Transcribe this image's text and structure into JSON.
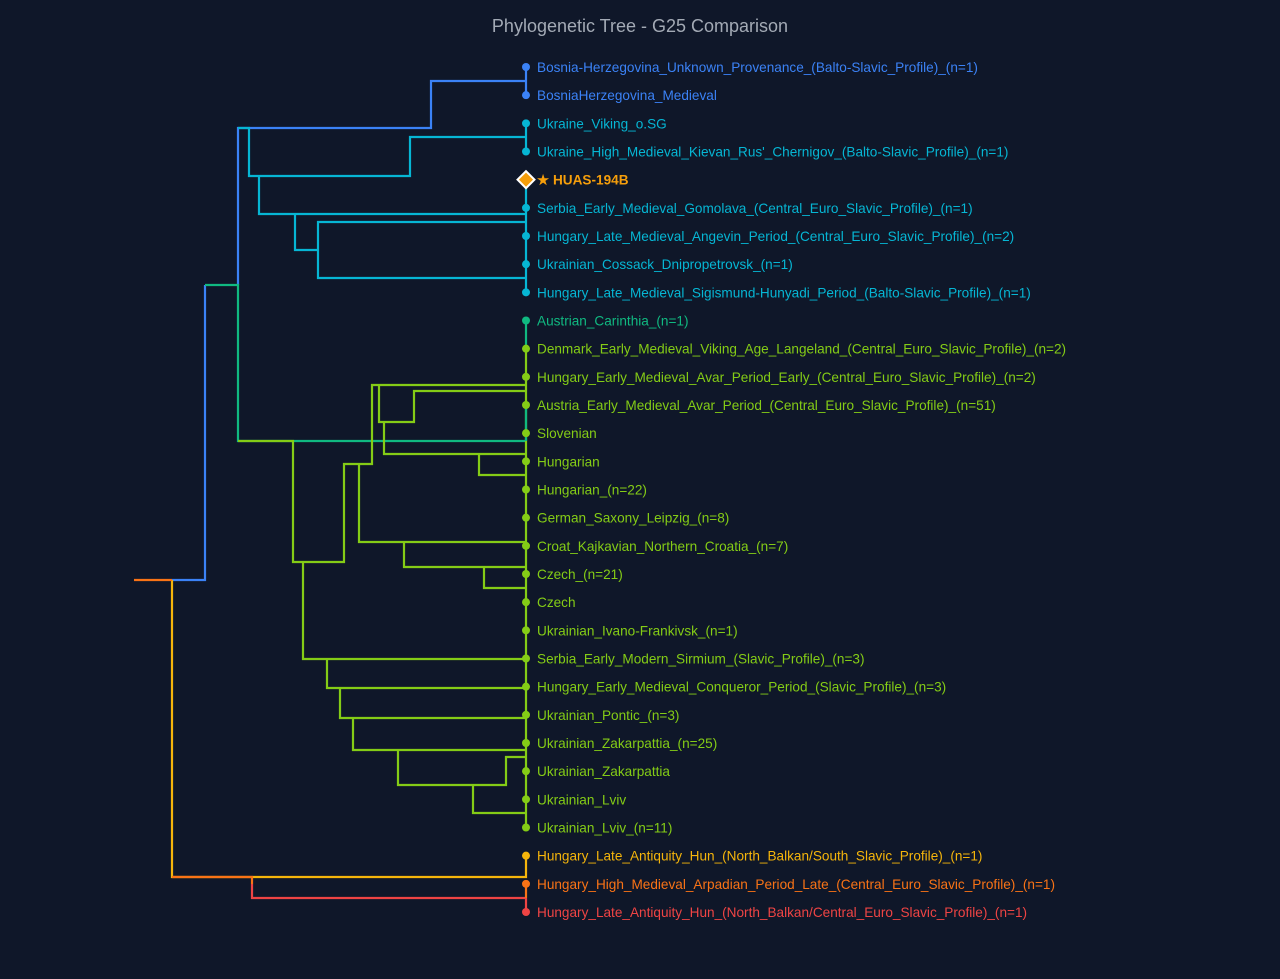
{
  "chart_data": {
    "type": "dendrogram",
    "title": "Phylogenetic Tree - G25 Comparison",
    "orientation": "leaves-right",
    "highlight": {
      "label": "HUAS-194B",
      "marker": "diamond",
      "prefix": "★",
      "color": "#f59e0b"
    },
    "cluster_colors": {
      "blue": "#3b82f6",
      "cyan": "#06b6d4",
      "teal": "#10b981",
      "lime": "#84cc16",
      "yellow": "#f5b50b",
      "orange": "#f97316",
      "red": "#ef4444"
    },
    "leaves": [
      {
        "label": "Bosnia-Herzegovina_Unknown_Provenance_(Balto-Slavic_Profile)_(n=1)",
        "color": "#3b82f6"
      },
      {
        "label": "BosniaHerzegovina_Medieval",
        "color": "#3b82f6"
      },
      {
        "label": "Ukraine_Viking_o.SG",
        "color": "#06b6d4"
      },
      {
        "label": "Ukraine_High_Medieval_Kievan_Rus'_Chernigov_(Balto-Slavic_Profile)_(n=1)",
        "color": "#06b6d4"
      },
      {
        "label": "★ HUAS-194B",
        "color": "#f59e0b",
        "highlight": true
      },
      {
        "label": "Serbia_Early_Medieval_Gomolava_(Central_Euro_Slavic_Profile)_(n=1)",
        "color": "#06b6d4"
      },
      {
        "label": "Hungary_Late_Medieval_Angevin_Period_(Central_Euro_Slavic_Profile)_(n=2)",
        "color": "#06b6d4"
      },
      {
        "label": "Ukrainian_Cossack_Dnipropetrovsk_(n=1)",
        "color": "#06b6d4"
      },
      {
        "label": "Hungary_Late_Medieval_Sigismund-Hunyadi_Period_(Balto-Slavic_Profile)_(n=1)",
        "color": "#06b6d4"
      },
      {
        "label": "Austrian_Carinthia_(n=1)",
        "color": "#10b981"
      },
      {
        "label": "Denmark_Early_Medieval_Viking_Age_Langeland_(Central_Euro_Slavic_Profile)_(n=2)",
        "color": "#84cc16"
      },
      {
        "label": "Hungary_Early_Medieval_Avar_Period_Early_(Central_Euro_Slavic_Profile)_(n=2)",
        "color": "#84cc16"
      },
      {
        "label": "Austria_Early_Medieval_Avar_Period_(Central_Euro_Slavic_Profile)_(n=51)",
        "color": "#84cc16"
      },
      {
        "label": "Slovenian",
        "color": "#84cc16"
      },
      {
        "label": "Hungarian",
        "color": "#84cc16"
      },
      {
        "label": "Hungarian_(n=22)",
        "color": "#84cc16"
      },
      {
        "label": "German_Saxony_Leipzig_(n=8)",
        "color": "#84cc16"
      },
      {
        "label": "Croat_Kajkavian_Northern_Croatia_(n=7)",
        "color": "#84cc16"
      },
      {
        "label": "Czech_(n=21)",
        "color": "#84cc16"
      },
      {
        "label": "Czech",
        "color": "#84cc16"
      },
      {
        "label": "Ukrainian_Ivano-Frankivsk_(n=1)",
        "color": "#84cc16"
      },
      {
        "label": "Serbia_Early_Modern_Sirmium_(Slavic_Profile)_(n=3)",
        "color": "#84cc16"
      },
      {
        "label": "Hungary_Early_Medieval_Conqueror_Period_(Slavic_Profile)_(n=3)",
        "color": "#84cc16"
      },
      {
        "label": "Ukrainian_Pontic_(n=3)",
        "color": "#84cc16"
      },
      {
        "label": "Ukrainian_Zakarpattia_(n=25)",
        "color": "#84cc16"
      },
      {
        "label": "Ukrainian_Zakarpattia",
        "color": "#84cc16"
      },
      {
        "label": "Ukrainian_Lviv",
        "color": "#84cc16"
      },
      {
        "label": "Ukrainian_Lviv_(n=11)",
        "color": "#84cc16"
      },
      {
        "label": "Hungary_Late_Antiquity_Hun_(North_Balkan/South_Slavic_Profile)_(n=1)",
        "color": "#f5b50b"
      },
      {
        "label": "Hungary_High_Medieval_Arpadian_Period_Late_(Central_Euro_Slavic_Profile)_(n=1)",
        "color": "#f97316"
      },
      {
        "label": "Hungary_Late_Antiquity_Hun_(North_Balkan/Central_Euro_Slavic_Profile)_(n=1)",
        "color": "#ef4444"
      }
    ]
  }
}
